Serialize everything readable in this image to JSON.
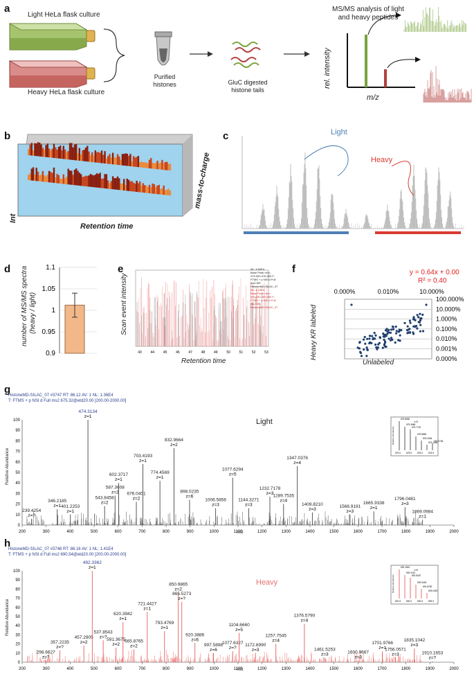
{
  "panel_a": {
    "label": "a",
    "light_culture": "Light HeLa flask culture",
    "heavy_culture": "Heavy HeLa flask culture",
    "purified": [
      "Purified",
      "histones"
    ],
    "digested": [
      "GluC digested",
      "histone tails"
    ],
    "msms_title": [
      "MS/MS analysis of light",
      "and heavy peptides"
    ],
    "ylabel": "rel. intensity",
    "xlabel": "m/z",
    "colors": {
      "light": "#7aa43c",
      "heavy": "#b0413e"
    }
  },
  "panel_b": {
    "label": "b",
    "xlabel": "Retention time",
    "ylabel": "Int",
    "zlabel": "mass-to-charge"
  },
  "panel_c": {
    "label": "c",
    "light_label": "Light",
    "heavy_label": "Heavy",
    "colors": {
      "light": "#4d7fb5",
      "heavy": "#d83a32"
    }
  },
  "chart_data": [
    {
      "panel": "d",
      "type": "bar",
      "categories": [
        ""
      ],
      "values": [
        1.012
      ],
      "error": [
        0.028
      ],
      "ylabel": [
        "number of MS/MS spectra",
        "(heavy / light)"
      ],
      "ylim": [
        0.9,
        1.1
      ],
      "yticks": [
        "1.1",
        "1.05",
        "1",
        "0.95",
        "0.9"
      ],
      "color": "#f2b88a"
    },
    {
      "panel": "f",
      "type": "scatter",
      "xlabel": "Unlabeled",
      "ylabel": "Heavy KR labeled",
      "xticks": [
        "0.000%",
        "0.010%",
        "10.000%"
      ],
      "yticks": [
        "100.000%",
        "10.000%",
        "1.000%",
        "0.100%",
        "0.010%",
        "0.001%",
        "0.000%"
      ],
      "equation": "y = 0.64x + 0.00",
      "r2": "R² = 0.40",
      "color": "#1f3f6e"
    }
  ],
  "panel_d": {
    "label": "d"
  },
  "panel_e": {
    "label": "e",
    "ylabel": "Scan event intensity",
    "xlabel": "Retention time",
    "xticks": [
      "43",
      "44",
      "45",
      "46",
      "47",
      "48",
      "49",
      "50",
      "51",
      "52",
      "53"
    ],
    "legend_light": [
      "NL: 4.60E4",
      "Base Peak m/z=",
      "475.000-476.000 F:",
      "FTMS + p NSI d Full",
      "ms2  MS",
      "HistoneMD-SILAC_07"
    ],
    "legend_heavy": [
      "NL: 4.10E4",
      "Base Peak m/z=",
      "493.030-493.500 F:",
      "FTMS + p NSI d Full",
      "ms2  MS",
      "HistoneMD-SILAC_07"
    ]
  },
  "panel_f": {
    "label": "f"
  },
  "panel_g": {
    "label": "g",
    "header1": "HistoneMD-SILAC_07 #3747  RT: 86.12  AV: 1  NL: 1.36E4",
    "header2": "T: FTMS + p NSI d Full ms2 675.32@etd20.00 [200.00-2000.00]",
    "title": "Light",
    "ylabel": "Relative Abundance",
    "xlabel": "m/z",
    "color": "#555555",
    "xticks": [
      "200",
      "300",
      "400",
      "500",
      "600",
      "700",
      "800",
      "900",
      "1000",
      "1100",
      "1200",
      "1300",
      "1400",
      "1500",
      "1600",
      "1700",
      "1800",
      "1900",
      "2000"
    ],
    "yticks": [
      "0",
      "10",
      "20",
      "30",
      "40",
      "50",
      "60",
      "70",
      "80",
      "90",
      "100"
    ],
    "peaks": [
      {
        "mz": "239.4254",
        "z": "z=?"
      },
      {
        "mz": "346.2185",
        "z": "z=1"
      },
      {
        "mz": "401.2253",
        "z": "z=1"
      },
      {
        "mz": "474.3134",
        "z": "z=1"
      },
      {
        "mz": "543.8458",
        "z": "z=2"
      },
      {
        "mz": "587.3608",
        "z": "z=2"
      },
      {
        "mz": "602.3717",
        "z": "z=1"
      },
      {
        "mz": "676.0401",
        "z": "z=2"
      },
      {
        "mz": "703.4193",
        "z": "z=1"
      },
      {
        "mz": "774.4569",
        "z": "z=1"
      },
      {
        "mz": "832.9664",
        "z": "z=2"
      },
      {
        "mz": "898.0235",
        "z": "z=6"
      },
      {
        "mz": "1006.5856",
        "z": "z=3"
      },
      {
        "mz": "1077.6294",
        "z": "z=5"
      },
      {
        "mz": "1144.3271",
        "z": "z=3"
      },
      {
        "mz": "1232.7178",
        "z": "z=3"
      },
      {
        "mz": "1289.7535",
        "z": "z=4"
      },
      {
        "mz": "1347.0376",
        "z": "z=4"
      },
      {
        "mz": "1409.8210",
        "z": "z=3"
      },
      {
        "mz": "1566.9191",
        "z": "z=3"
      },
      {
        "mz": "1665.9338",
        "z": "z=1"
      },
      {
        "mz": "1796.0481",
        "z": "z=3"
      },
      {
        "mz": "1869.0984",
        "z": "z=1"
      }
    ],
    "inset_peaks": [
      "675.8660",
      "675.3666",
      "675.7742",
      "675.8850",
      "676.0346",
      "676.1486",
      "675.2748"
    ],
    "inset_xticks": [
      "675.0",
      "675.5",
      "676.0",
      "676.5"
    ],
    "inset_ylabel": "Relative Abundance",
    "inset_z": "z=8"
  },
  "panel_h": {
    "label": "h",
    "header1": "HistoneMD-SILAC_07 #3748  RT: 86.16  AV: 1  NL: 1.41E4",
    "header2": "T: FTMS + p NSI d Full ms2 690.54@etd20.00 [200.00-2000.00]",
    "title": "Heavy",
    "ylabel": "Relative Abundance",
    "xlabel": "m/z",
    "color": "#e8716f",
    "xticks": [
      "200",
      "300",
      "400",
      "500",
      "600",
      "700",
      "800",
      "900",
      "1000",
      "1100",
      "1200",
      "1300",
      "1400",
      "1500",
      "1600",
      "1700",
      "1800",
      "1900",
      "2000"
    ],
    "yticks": [
      "0",
      "10",
      "20",
      "30",
      "40",
      "50",
      "60",
      "70",
      "80",
      "90",
      "100"
    ],
    "peaks": [
      {
        "mz": "298.6627",
        "z": "z=?"
      },
      {
        "mz": "357.2235",
        "z": "z=?"
      },
      {
        "mz": "457.2905",
        "z": "z=2"
      },
      {
        "mz": "492.3362",
        "z": "z=1"
      },
      {
        "mz": "537.8543",
        "z": "z=?"
      },
      {
        "mz": "591.3675",
        "z": "z=2"
      },
      {
        "mz": "620.3942",
        "z": "z=1"
      },
      {
        "mz": "665.8765",
        "z": "z=2"
      },
      {
        "mz": "721.4427",
        "z": "z=1"
      },
      {
        "mz": "793.4769",
        "z": "z=1"
      },
      {
        "mz": "850.9865",
        "z": "z=2"
      },
      {
        "mz": "865.5273",
        "z": "z=?"
      },
      {
        "mz": "920.3886",
        "z": "z=6"
      },
      {
        "mz": "997.5898",
        "z": "z=6"
      },
      {
        "mz": "1077.6327",
        "z": "z=?"
      },
      {
        "mz": "1104.6660",
        "z": "z=5"
      },
      {
        "mz": "1172.6990",
        "z": "z=3"
      },
      {
        "mz": "1257.7545",
        "z": "z=4"
      },
      {
        "mz": "1376.5790",
        "z": "z=4"
      },
      {
        "mz": "1461.5253",
        "z": "z=3"
      },
      {
        "mz": "1600.9667",
        "z": "z=3"
      },
      {
        "mz": "1701.9766",
        "z": "z=1"
      },
      {
        "mz": "1756.0571",
        "z": "z=3"
      },
      {
        "mz": "1835.1042",
        "z": "z=3"
      },
      {
        "mz": "1910.1653",
        "z": "z=?"
      }
    ],
    "inset_peaks": [
      "692.1661",
      "692.0412",
      "692.8187",
      "692.5440",
      "691.8782",
      "693.0451"
    ],
    "inset_xticks": [
      "691.5",
      "692.0",
      "692.5",
      "693.0"
    ],
    "inset_ylabel": "Relative Abundance",
    "inset_z": "z=8"
  }
}
